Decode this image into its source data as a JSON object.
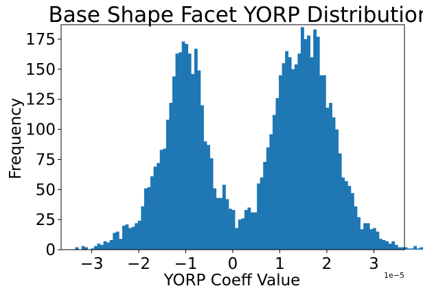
{
  "chart_data": {
    "type": "bar",
    "title": "Base Shape Facet YORP Distribution",
    "xlabel": "YORP Coeff Value",
    "ylabel": "Frequency",
    "x_offset_label": "1e−5",
    "xlim": [
      -3.65,
      3.65
    ],
    "ylim": [
      0,
      187
    ],
    "x_ticks": [
      -3,
      -2,
      -1,
      0,
      1,
      2,
      3
    ],
    "x_tick_labels": [
      "−3",
      "−2",
      "−1",
      "0",
      "1",
      "2",
      "3"
    ],
    "y_ticks": [
      0,
      25,
      50,
      75,
      100,
      125,
      150,
      175
    ],
    "y_tick_labels": [
      "0",
      "25",
      "50",
      "75",
      "100",
      "125",
      "150",
      "175"
    ],
    "bin_start": -3.35,
    "bin_width": 0.0666,
    "values": [
      2,
      0,
      3,
      2,
      0,
      1,
      3,
      5,
      4,
      7,
      6,
      8,
      14,
      15,
      9,
      20,
      21,
      18,
      19,
      22,
      24,
      36,
      51,
      52,
      61,
      69,
      72,
      83,
      84,
      108,
      122,
      144,
      163,
      164,
      173,
      171,
      163,
      146,
      167,
      149,
      120,
      90,
      87,
      76,
      51,
      43,
      43,
      54,
      42,
      34,
      33,
      18,
      25,
      26,
      33,
      35,
      31,
      31,
      55,
      60,
      73,
      85,
      96,
      112,
      126,
      145,
      155,
      165,
      160,
      150,
      154,
      163,
      185,
      175,
      178,
      160,
      183,
      177,
      145,
      145,
      118,
      122,
      110,
      100,
      80,
      60,
      57,
      53,
      47,
      36,
      27,
      17,
      22,
      22,
      17,
      18,
      15,
      9,
      8,
      7,
      5,
      7,
      4,
      2,
      2,
      2,
      1,
      1,
      3,
      1,
      2,
      1
    ]
  }
}
